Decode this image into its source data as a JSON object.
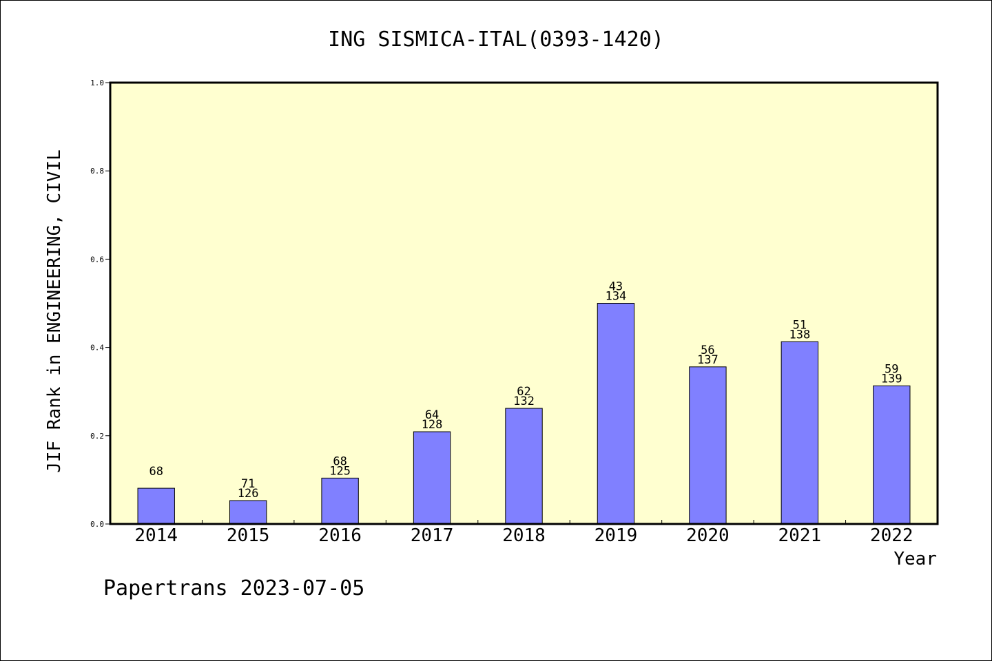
{
  "chart_data": {
    "type": "bar",
    "title": "ING SISMICA-ITAL(0393-1420)",
    "xlabel": "Year",
    "ylabel": "JIF Rank in ENGINEERING, CIVIL",
    "categories": [
      "2014",
      "2015",
      "2016",
      "2017",
      "2018",
      "2019",
      "2020",
      "2021",
      "2022"
    ],
    "values": [
      0.081,
      0.053,
      0.104,
      0.209,
      0.262,
      0.5,
      0.356,
      0.413,
      0.313
    ],
    "labels_top": [
      "68",
      "71",
      "68",
      "64",
      "62",
      "43",
      "56",
      "51",
      "59"
    ],
    "labels_bottom": [
      "",
      "126",
      "125",
      "128",
      "132",
      "134",
      "137",
      "138",
      "139"
    ],
    "ylim": [
      0,
      1.0
    ],
    "yticks": [
      "0.0",
      "0.2",
      "0.4",
      "0.6",
      "0.8",
      "1.0"
    ],
    "grid": false,
    "colors": {
      "bar": "#8080ff",
      "plot_bg": "#ffffd0"
    }
  },
  "footer": "Papertrans 2023-07-05"
}
